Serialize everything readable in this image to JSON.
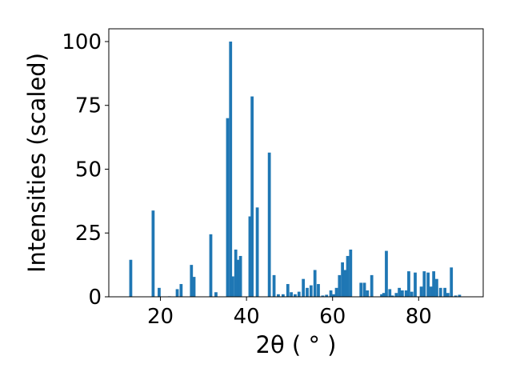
{
  "chart_data": {
    "type": "bar",
    "xlabel": "2θ ( ° )",
    "ylabel": "Intensities (scaled)",
    "xlim": [
      8,
      95
    ],
    "ylim": [
      0,
      105
    ],
    "xticks": [
      20,
      40,
      60,
      80
    ],
    "yticks": [
      0,
      25,
      50,
      75,
      100
    ],
    "grid": false,
    "bar_color": "#1f77b4",
    "bar_width": 0.7,
    "x": [
      13.1,
      18.3,
      19.7,
      22.1,
      23.9,
      24.8,
      27.2,
      27.8,
      31.7,
      32.9,
      35.6,
      36.3,
      36.8,
      37.5,
      38.1,
      38.6,
      40.8,
      41.3,
      42.5,
      45.3,
      46.4,
      47.4,
      48.5,
      49.6,
      50.4,
      51.3,
      52.2,
      53.2,
      54.1,
      55.0,
      55.9,
      56.7,
      57.7,
      58.6,
      59.6,
      60.3,
      60.9,
      61.6,
      62.3,
      62.9,
      63.5,
      64.2,
      66.6,
      67.4,
      68.1,
      69.1,
      71.4,
      71.9,
      72.5,
      73.3,
      73.9,
      74.8,
      75.5,
      76.2,
      77.1,
      77.7,
      78.4,
      79.2,
      80.6,
      81.3,
      82.2,
      82.9,
      83.5,
      84.2,
      85.1,
      86.1,
      86.8,
      87.6,
      88.6,
      89.5
    ],
    "values": [
      14.5,
      33.8,
      3.5,
      0.2,
      3,
      5,
      12.5,
      7.8,
      24.5,
      1.8,
      70,
      100,
      8,
      18.5,
      14.5,
      16,
      31.5,
      78.5,
      35,
      56.5,
      8.5,
      1,
      1,
      5,
      1.8,
      1,
      2,
      7,
      3.5,
      4.5,
      10.5,
      5,
      0.5,
      0.8,
      2.5,
      1,
      3.5,
      8.5,
      13.5,
      10.5,
      16,
      18.5,
      5.5,
      5.5,
      2.5,
      8.5,
      1,
      1.5,
      18,
      3,
      0.5,
      1.5,
      3.5,
      2.5,
      2.5,
      10,
      2,
      9.5,
      4,
      10,
      9.5,
      4,
      10,
      7,
      3.5,
      3.5,
      1.5,
      11.5,
      0.5,
      0.8
    ]
  }
}
